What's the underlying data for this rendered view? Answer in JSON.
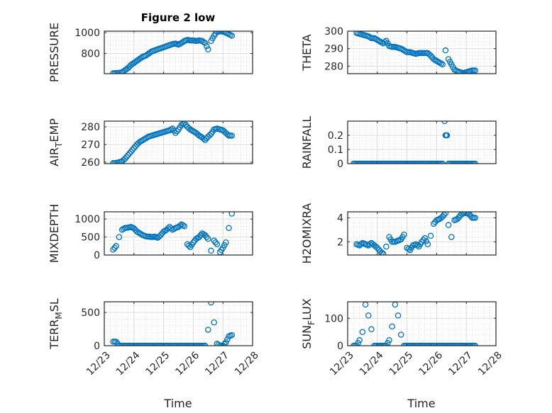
{
  "title": "Figure 2 low",
  "xlabel": "Time",
  "marker_color": "#0072BD",
  "chart_data": [
    {
      "type": "scatter",
      "ylabel": "PRESSURE",
      "xlim": [
        0,
        5
      ],
      "ylim": [
        607,
        1014
      ],
      "yticks": [
        800,
        1000
      ],
      "x": [
        0.3,
        0.4,
        0.5,
        0.6,
        0.7,
        0.8,
        0.9,
        1.0,
        1.1,
        1.2,
        1.3,
        1.4,
        1.5,
        1.6,
        1.7,
        1.8,
        1.9,
        2.0,
        2.1,
        2.2,
        2.3,
        2.4,
        2.5,
        2.6,
        2.7,
        2.8,
        2.9,
        3.0,
        3.1,
        3.2,
        3.3,
        3.4,
        3.5,
        3.6,
        3.7,
        3.8,
        3.9,
        4.0,
        4.1,
        4.2,
        4.3
      ],
      "y": [
        610,
        612,
        615,
        620,
        640,
        660,
        690,
        710,
        730,
        750,
        770,
        780,
        800,
        820,
        830,
        840,
        850,
        860,
        870,
        880,
        890,
        895,
        885,
        900,
        920,
        930,
        925,
        925,
        920,
        925,
        920,
        900,
        840,
        920,
        970,
        1010,
        1012,
        1010,
        1000,
        985,
        970
      ]
    },
    {
      "type": "scatter",
      "ylabel": "THETA",
      "xlim": [
        0,
        5
      ],
      "ylim": [
        275.7,
        300
      ],
      "yticks": [
        280,
        290,
        300
      ],
      "x": [
        0.3,
        0.4,
        0.5,
        0.6,
        0.7,
        0.8,
        0.9,
        1.0,
        1.1,
        1.2,
        1.3,
        1.4,
        1.5,
        1.6,
        1.7,
        1.8,
        1.9,
        2.0,
        2.1,
        2.2,
        2.3,
        2.4,
        2.5,
        2.6,
        2.7,
        2.8,
        2.9,
        3.0,
        3.1,
        3.2,
        3.3,
        3.4,
        3.5,
        3.6,
        3.7,
        3.8,
        3.9,
        4.0,
        4.1,
        4.2,
        4.3
      ],
      "y": [
        299,
        298.5,
        298,
        297.5,
        297,
        296,
        296,
        295,
        294,
        293,
        294.5,
        291.5,
        291,
        291,
        290.5,
        290,
        289,
        288,
        288,
        287.5,
        287,
        287.5,
        287.5,
        287.5,
        287.5,
        286,
        284,
        283,
        282,
        281,
        289,
        284,
        281,
        278,
        277,
        276.5,
        276,
        276.5,
        277,
        277.5,
        277.5
      ]
    },
    {
      "type": "scatter",
      "ylabel": "AIR_TEMP",
      "xlim": [
        0,
        5
      ],
      "ylim": [
        259.2,
        283.2
      ],
      "yticks": [
        260,
        270,
        280
      ],
      "x": [
        0.3,
        0.4,
        0.5,
        0.6,
        0.7,
        0.8,
        0.9,
        1.0,
        1.1,
        1.2,
        1.3,
        1.4,
        1.5,
        1.6,
        1.7,
        1.8,
        1.9,
        2.0,
        2.1,
        2.2,
        2.3,
        2.4,
        2.5,
        2.6,
        2.7,
        2.8,
        2.9,
        3.0,
        3.1,
        3.2,
        3.3,
        3.4,
        3.5,
        3.6,
        3.7,
        3.8,
        3.9,
        4.0,
        4.1,
        4.2,
        4.3
      ],
      "y": [
        259.5,
        259.6,
        260,
        260.5,
        262,
        264,
        266,
        268,
        270,
        271.5,
        272.5,
        273.5,
        274.5,
        275,
        275.5,
        276,
        276.5,
        277,
        277.5,
        278,
        279,
        276.5,
        278.5,
        281,
        282,
        280,
        278.5,
        277.5,
        276.5,
        275,
        274,
        272.5,
        274.5,
        276,
        278.5,
        279,
        278.5,
        278,
        276.5,
        275,
        275
      ]
    },
    {
      "type": "scatter",
      "ylabel": "RAINFALL",
      "xlim": [
        0,
        5
      ],
      "ylim": [
        0,
        0.3
      ],
      "yticks": [
        0,
        0.1,
        0.2
      ],
      "x": [
        0.2,
        0.3,
        0.4,
        0.5,
        0.6,
        0.7,
        0.8,
        0.9,
        1.0,
        1.1,
        1.2,
        1.3,
        1.4,
        1.5,
        1.6,
        1.7,
        1.8,
        1.9,
        2.0,
        2.1,
        2.2,
        2.3,
        2.4,
        2.5,
        2.6,
        2.7,
        2.8,
        2.9,
        3.0,
        3.1,
        3.2,
        3.27,
        3.3,
        3.35,
        3.4,
        3.5,
        3.6,
        3.7,
        3.8,
        3.9,
        4.0,
        4.1,
        4.2,
        4.3
      ],
      "y": [
        0,
        0,
        0,
        0,
        0,
        0,
        0,
        0,
        0,
        0,
        0,
        0,
        0,
        0,
        0,
        0,
        0,
        0,
        0,
        0,
        0,
        0,
        0,
        0,
        0,
        0,
        0,
        0,
        0,
        0,
        0,
        0.3,
        0.2,
        0.2,
        0,
        0,
        0,
        0,
        0,
        0,
        0,
        0,
        0,
        0
      ]
    },
    {
      "type": "scatter",
      "ylabel": "MIXDEPTH",
      "xlim": [
        0,
        5
      ],
      "ylim": [
        0,
        1200
      ],
      "yticks": [
        0,
        500,
        1000
      ],
      "x": [
        0.3,
        0.4,
        0.5,
        0.6,
        0.7,
        0.8,
        0.9,
        1.0,
        1.1,
        1.2,
        1.3,
        1.4,
        1.5,
        1.6,
        1.7,
        1.8,
        1.9,
        2.0,
        2.1,
        2.2,
        2.3,
        2.4,
        2.5,
        2.6,
        2.7,
        2.8,
        2.9,
        3.0,
        3.1,
        3.2,
        3.3,
        3.4,
        3.5,
        3.6,
        3.7,
        3.8,
        3.9,
        4.0,
        4.1,
        4.2,
        4.3
      ],
      "y": [
        150,
        250,
        500,
        700,
        750,
        760,
        780,
        740,
        650,
        600,
        550,
        520,
        510,
        500,
        510,
        480,
        550,
        650,
        700,
        780,
        700,
        750,
        780,
        850,
        800,
        300,
        220,
        350,
        450,
        500,
        600,
        550,
        450,
        120,
        400,
        300,
        80,
        200,
        350,
        750,
        1150
      ]
    },
    {
      "type": "scatter",
      "ylabel": "H2OMIXRA",
      "xlim": [
        0,
        5
      ],
      "ylim": [
        0.9,
        4.5
      ],
      "yticks": [
        2,
        4
      ],
      "x": [
        0.3,
        0.4,
        0.5,
        0.6,
        0.7,
        0.8,
        0.9,
        1.0,
        1.1,
        1.2,
        1.3,
        1.4,
        1.5,
        1.6,
        1.7,
        1.8,
        1.9,
        2.0,
        2.1,
        2.2,
        2.3,
        2.4,
        2.5,
        2.6,
        2.7,
        2.8,
        2.9,
        3.0,
        3.1,
        3.2,
        3.3,
        3.4,
        3.5,
        3.6,
        3.7,
        3.8,
        3.9,
        4.0,
        4.1,
        4.2,
        4.3
      ],
      "y": [
        1.8,
        1.7,
        1.9,
        1.8,
        1.7,
        1.9,
        1.7,
        1.5,
        1.2,
        1.0,
        1.6,
        2.4,
        2.0,
        2.0,
        2.1,
        2.2,
        2.6,
        1.5,
        1.3,
        1.7,
        1.8,
        1.6,
        2.0,
        2.3,
        1.8,
        2.5,
        3.5,
        3.8,
        3.9,
        4.1,
        4.4,
        3.4,
        2.4,
        3.8,
        3.9,
        4.2,
        4.4,
        4.4,
        4.3,
        4.0,
        4.0
      ]
    },
    {
      "type": "scatter",
      "ylabel": "TERR_MSL",
      "xlim": [
        0,
        5
      ],
      "ylim": [
        0,
        660
      ],
      "yticks": [
        0,
        500
      ],
      "x": [
        0.3,
        0.4,
        0.5,
        0.6,
        0.7,
        0.8,
        0.9,
        1.0,
        1.1,
        1.2,
        1.3,
        1.4,
        1.5,
        1.6,
        1.7,
        1.8,
        1.9,
        2.0,
        2.1,
        2.2,
        2.3,
        2.4,
        2.5,
        2.6,
        2.7,
        2.8,
        2.9,
        3.0,
        3.1,
        3.2,
        3.3,
        3.4,
        3.5,
        3.6,
        3.7,
        3.8,
        3.9,
        4.0,
        4.1,
        4.2,
        4.3
      ],
      "y": [
        60,
        60,
        0,
        0,
        0,
        0,
        0,
        0,
        0,
        0,
        0,
        0,
        0,
        0,
        0,
        0,
        0,
        0,
        0,
        0,
        0,
        0,
        0,
        0,
        0,
        0,
        0,
        0,
        0,
        0,
        0,
        0,
        240,
        650,
        350,
        30,
        0,
        0,
        50,
        140,
        160
      ]
    },
    {
      "type": "scatter",
      "ylabel": "SUN_FLUX",
      "xlim": [
        0,
        5
      ],
      "ylim": [
        0,
        160
      ],
      "yticks": [
        0,
        100
      ],
      "x": [
        0.2,
        0.3,
        0.4,
        0.5,
        0.6,
        0.7,
        0.8,
        0.9,
        1.0,
        1.1,
        1.2,
        1.3,
        1.4,
        1.5,
        1.6,
        1.7,
        1.8,
        1.9,
        2.0,
        2.1,
        2.2,
        2.3,
        2.4,
        2.5,
        2.6,
        2.7,
        2.8,
        2.9,
        3.0,
        3.1,
        3.2,
        3.3,
        3.4,
        3.5,
        3.6,
        3.7,
        3.8,
        3.9,
        4.0,
        4.1,
        4.2,
        4.3
      ],
      "y": [
        0,
        0,
        20,
        50,
        150,
        110,
        60,
        0,
        0,
        0,
        0,
        0,
        20,
        70,
        150,
        110,
        40,
        0,
        0,
        0,
        0,
        0,
        0,
        0,
        0,
        0,
        0,
        0,
        0,
        0,
        0,
        0,
        0,
        0,
        0,
        0,
        0,
        0,
        0,
        0,
        0,
        0
      ]
    }
  ],
  "xticks": [
    "12/23",
    "12/24",
    "12/25",
    "12/26",
    "12/27",
    "12/28"
  ]
}
